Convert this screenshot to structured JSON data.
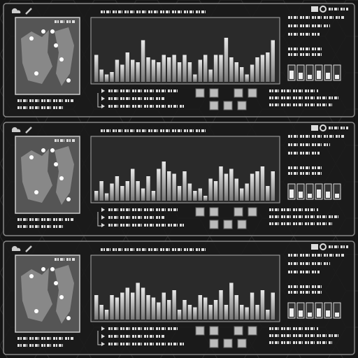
{
  "panels": [
    {
      "bars": [
        55,
        25,
        15,
        20,
        45,
        35,
        60,
        45,
        40,
        85,
        50,
        45,
        40,
        55,
        50,
        55,
        40,
        55,
        40,
        15,
        45,
        55,
        25,
        55,
        55,
        90,
        50,
        40,
        30,
        15,
        35,
        50,
        55,
        60,
        85
      ]
    },
    {
      "bars": [
        20,
        40,
        15,
        35,
        50,
        30,
        40,
        65,
        40,
        25,
        50,
        20,
        65,
        80,
        60,
        55,
        30,
        60,
        35,
        20,
        25,
        10,
        45,
        40,
        70,
        55,
        65,
        45,
        25,
        35,
        55,
        60,
        70,
        30,
        60
      ]
    },
    {
      "bars": [
        50,
        30,
        20,
        50,
        45,
        55,
        65,
        55,
        75,
        65,
        50,
        45,
        35,
        55,
        40,
        60,
        20,
        40,
        30,
        25,
        50,
        45,
        30,
        40,
        60,
        30,
        75,
        50,
        30,
        25,
        55,
        30,
        60,
        20,
        55
      ]
    }
  ]
}
